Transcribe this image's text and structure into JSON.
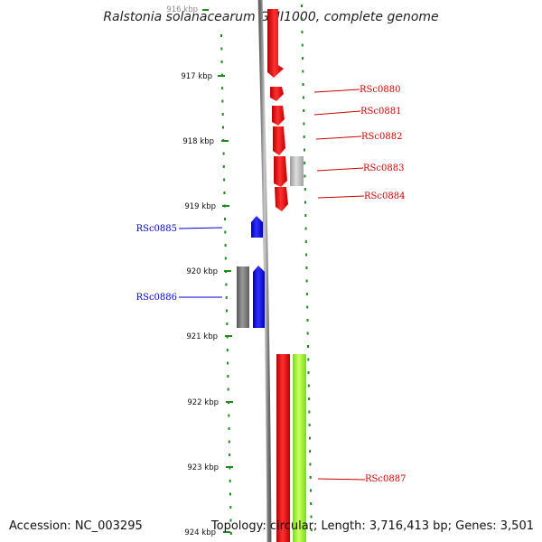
{
  "title": "Ralstonia solanacearum GMI1000, complete genome",
  "footer": {
    "accession": "Accession: NC_003295",
    "topology": "Topology: circular; Length: 3,716,413 bp; Genes: 3,501"
  },
  "ruler": {
    "top_label": "916 kbp",
    "labels": [
      "917 kbp",
      "918 kbp",
      "919 kbp",
      "920 kbp",
      "921 kbp",
      "922 kbp",
      "923 kbp",
      "924 kbp"
    ]
  },
  "genes_forward": [
    {
      "label": "RSc0880"
    },
    {
      "label": "RSc0881"
    },
    {
      "label": "RSc0882"
    },
    {
      "label": "RSc0883"
    },
    {
      "label": "RSc0884"
    },
    {
      "label": "RSc0887"
    }
  ],
  "genes_reverse": [
    {
      "label": "RSc0885"
    },
    {
      "label": "RSc0886"
    }
  ],
  "colors": {
    "forward_gene": "#ff0000",
    "forward_label": "#cc0000",
    "reverse_gene": "#0000ff",
    "reverse_label": "#0000cc",
    "other_gene": "#888888",
    "light_gene": "#bbbbbb",
    "rna_gene": "#99ff33",
    "ticks": "#228822",
    "backbone": "#999999"
  }
}
